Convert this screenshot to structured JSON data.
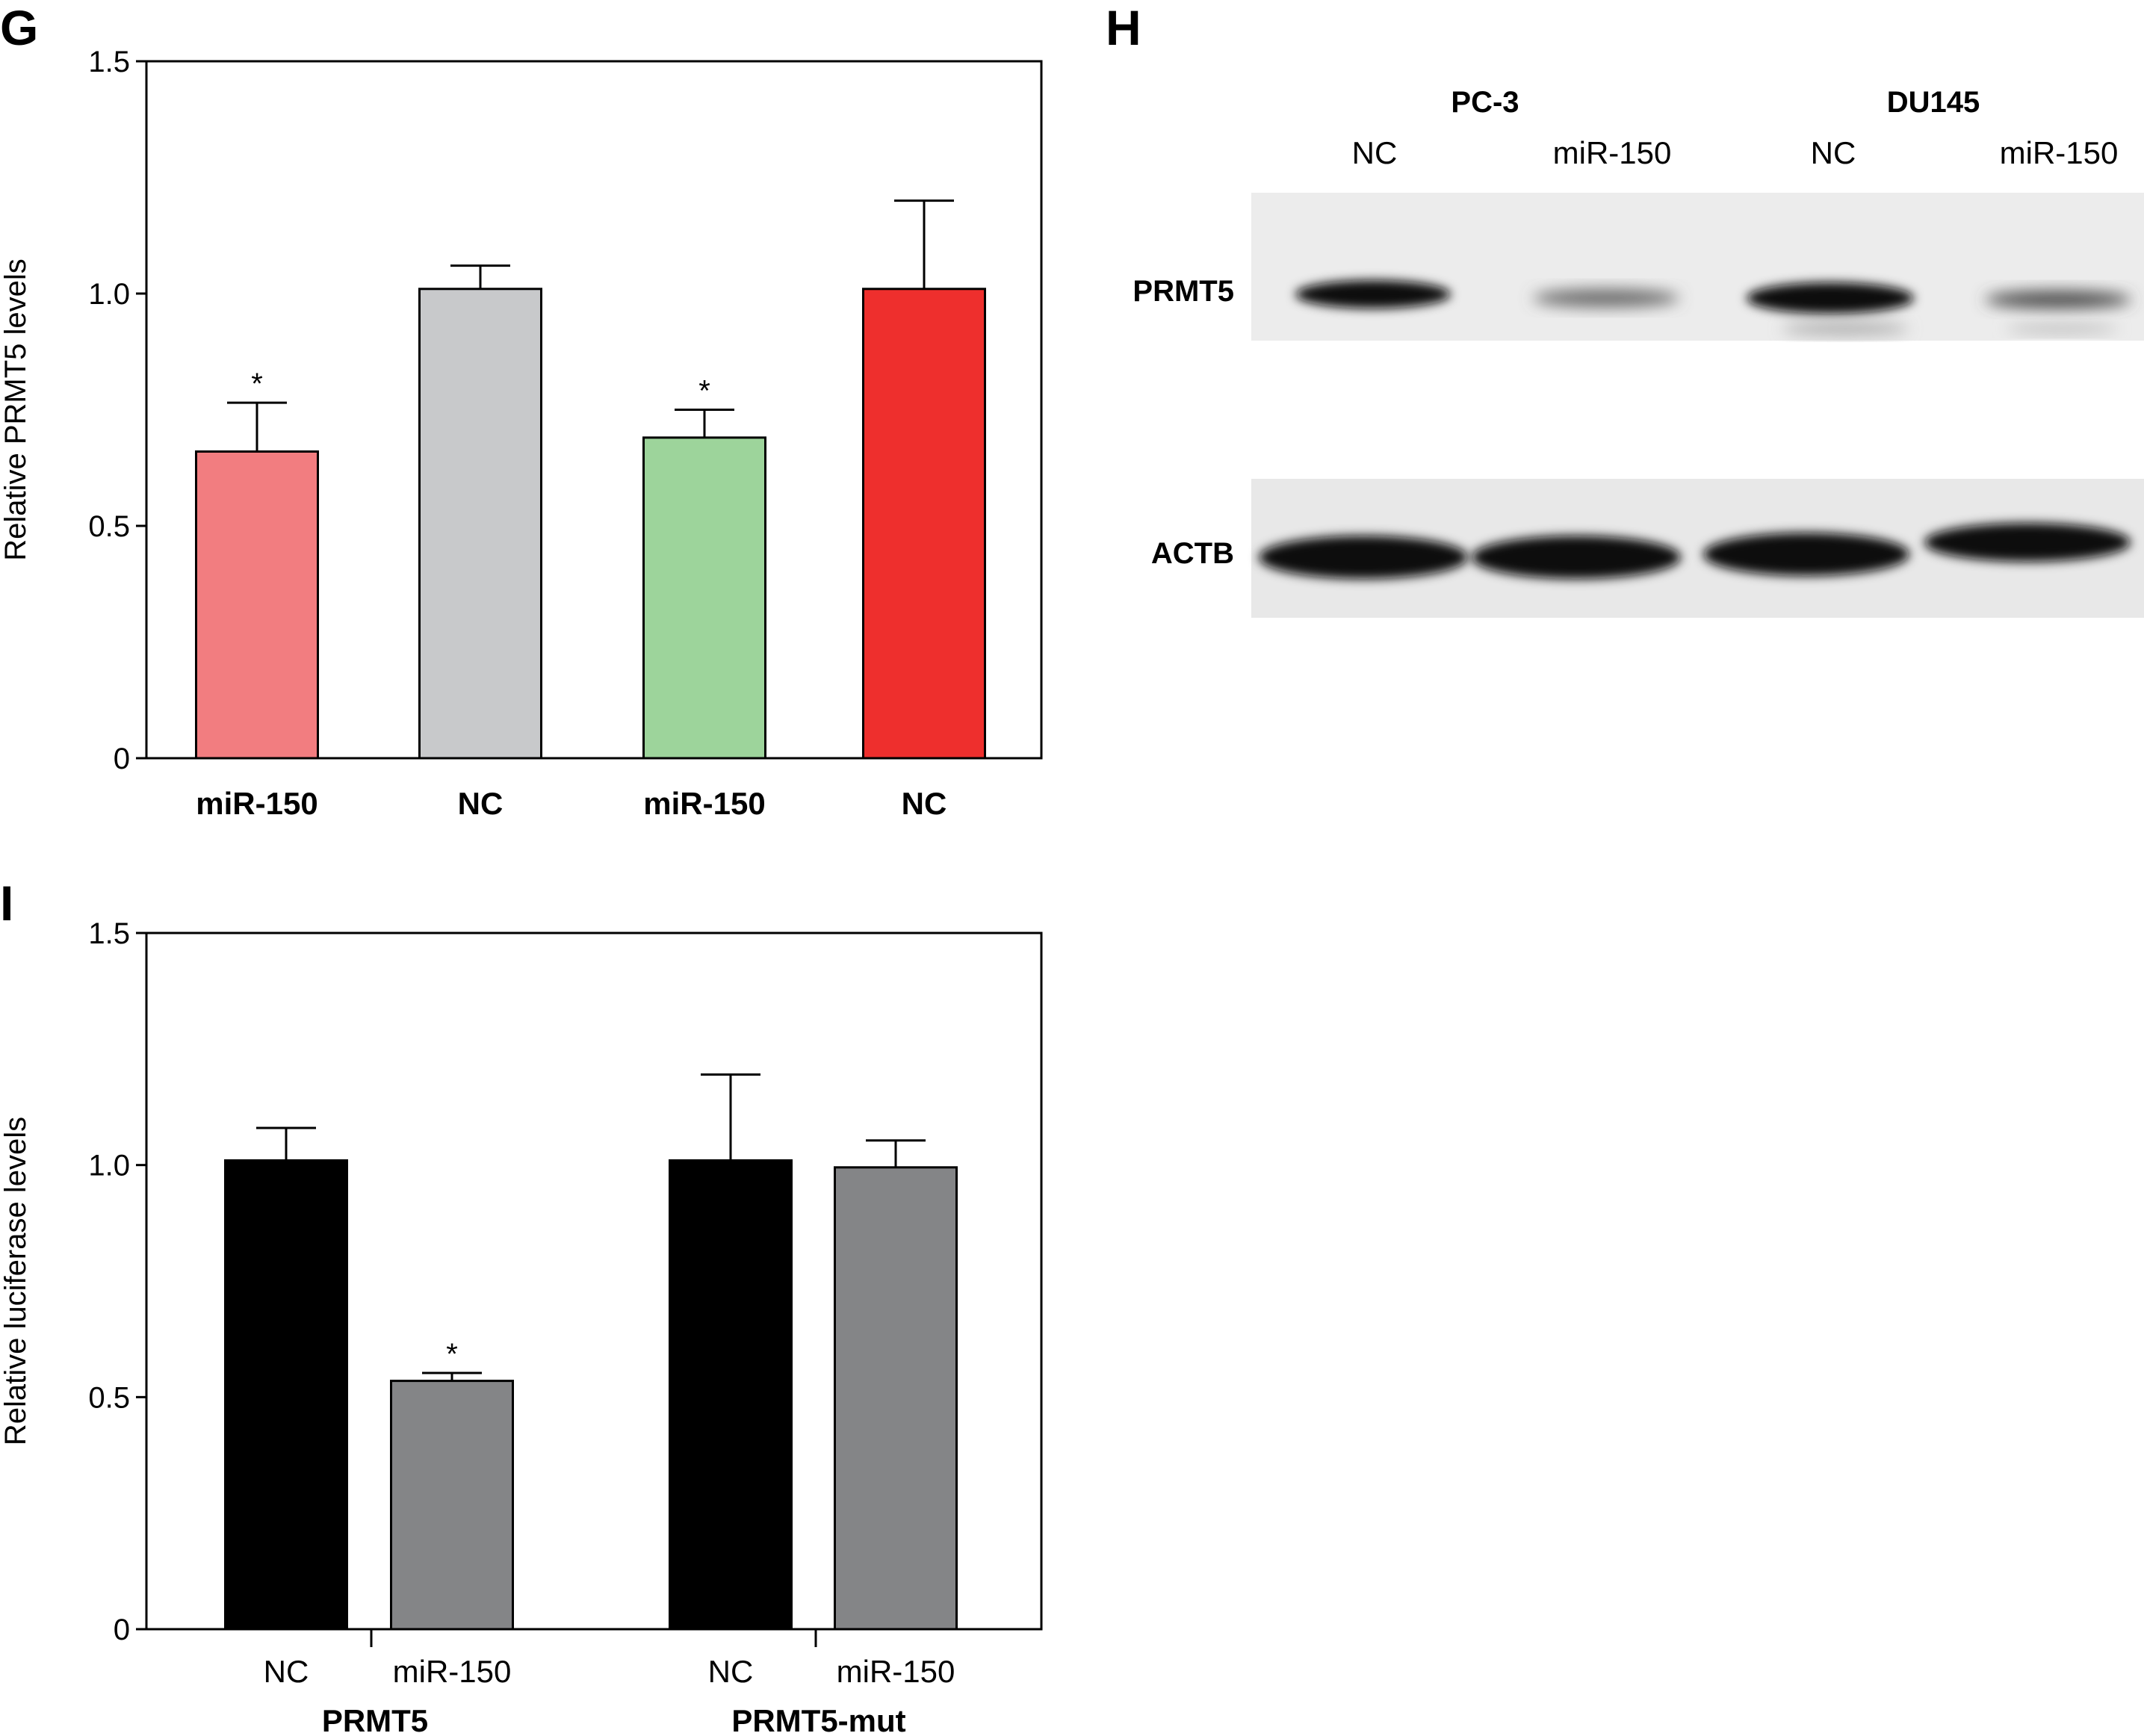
{
  "panels": {
    "G": "G",
    "H": "H",
    "I": "I"
  },
  "chart_data": [
    {
      "id": "G",
      "type": "bar",
      "title": "",
      "ylabel": "Relative PRMT5 levels",
      "xlabel": "",
      "ylim": [
        0,
        1.5
      ],
      "yticks": [
        0,
        0.5,
        1.0,
        1.5
      ],
      "ytick_labels": [
        "0",
        "0.5",
        "1.0",
        "1.5"
      ],
      "categories": [
        "miR-150",
        "NC",
        "miR-150",
        "NC"
      ],
      "category_bold": true,
      "values": [
        0.66,
        1.01,
        0.69,
        1.01
      ],
      "errors": [
        0.105,
        0.05,
        0.06,
        0.19
      ],
      "colors": [
        "#f27d80",
        "#c8c9cb",
        "#9dd49b",
        "#ee2f2d"
      ],
      "significance": [
        "*",
        "",
        "*",
        ""
      ],
      "grid": false
    },
    {
      "id": "I",
      "type": "bar",
      "title": "",
      "ylabel": "Relative luciferase levels",
      "xlabel": "",
      "ylim": [
        0,
        1.5
      ],
      "yticks": [
        0,
        0.5,
        1.0,
        1.5
      ],
      "ytick_labels": [
        "0",
        "0.5",
        "1.0",
        "1.5"
      ],
      "categories": [
        "NC",
        "miR-150",
        "NC",
        "miR-150"
      ],
      "groups": [
        "PRMT5",
        "PRMT5-mut"
      ],
      "values": [
        1.01,
        0.535,
        1.01,
        0.995
      ],
      "errors": [
        0.07,
        0.017,
        0.185,
        0.058
      ],
      "colors": [
        "#000000",
        "#848587",
        "#000000",
        "#848587"
      ],
      "significance": [
        "",
        "*",
        "",
        ""
      ],
      "grid": false
    }
  ],
  "blot": {
    "groups": [
      "PC-3",
      "DU145"
    ],
    "lanes": [
      "NC",
      "miR-150",
      "NC",
      "miR-150"
    ],
    "rows": [
      "PRMT5",
      "ACTB"
    ]
  }
}
